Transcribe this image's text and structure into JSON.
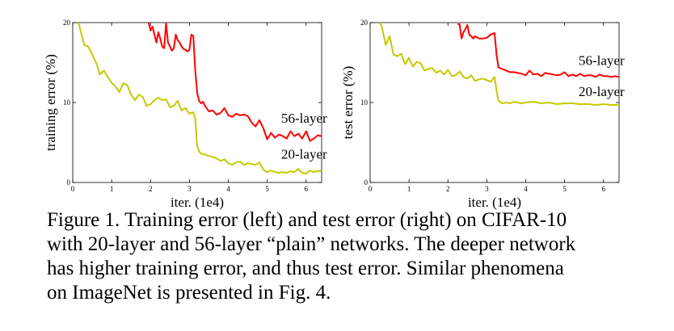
{
  "chart_data": [
    {
      "type": "line",
      "title": "",
      "xlabel": "iter. (1e4)",
      "ylabel": "training error (%)",
      "xlim": [
        0,
        6.4
      ],
      "ylim": [
        0,
        20
      ],
      "xticks": [
        "0",
        "1",
        "2",
        "3",
        "4",
        "5",
        "6"
      ],
      "yticks": [
        "0",
        "10",
        "20"
      ],
      "series": [
        {
          "name": "56-layer",
          "color": "#ff0000",
          "x": [
            1.95,
            2.0,
            2.05,
            2.1,
            2.15,
            2.2,
            2.25,
            2.3,
            2.35,
            2.4,
            2.45,
            2.5,
            2.55,
            2.6,
            2.65,
            2.7,
            2.75,
            2.8,
            2.85,
            2.9,
            2.95,
            3.0,
            3.05,
            3.1,
            3.15,
            3.2,
            3.25,
            3.3,
            3.35,
            3.4,
            3.5,
            3.6,
            3.7,
            3.8,
            3.9,
            4.0,
            4.1,
            4.2,
            4.3,
            4.4,
            4.5,
            4.6,
            4.7,
            4.8,
            4.9,
            5.0,
            5.1,
            5.2,
            5.3,
            5.4,
            5.5,
            5.6,
            5.7,
            5.8,
            5.9,
            6.0,
            6.1,
            6.2,
            6.3,
            6.4
          ],
          "y": [
            20,
            19.0,
            19.5,
            18.5,
            17.5,
            18.8,
            18.0,
            17.0,
            16.8,
            19.9,
            17.5,
            17.0,
            16.5,
            16.8,
            18.5,
            17.8,
            17.5,
            17.0,
            16.7,
            16.6,
            16.4,
            16.6,
            18.5,
            18.3,
            14.0,
            11.2,
            10.2,
            9.9,
            10.1,
            9.6,
            8.9,
            9.0,
            8.5,
            8.7,
            9.3,
            8.4,
            8.2,
            8.6,
            8.4,
            8.5,
            8.3,
            7.5,
            7.0,
            7.8,
            6.8,
            5.4,
            6.2,
            5.6,
            6.0,
            5.8,
            5.5,
            6.4,
            5.8,
            6.1,
            5.5,
            6.4,
            5.2,
            5.5,
            5.9,
            5.8
          ]
        },
        {
          "name": "20-layer",
          "color": "#c8c800",
          "x": [
            0.15,
            0.2,
            0.3,
            0.4,
            0.5,
            0.6,
            0.7,
            0.8,
            0.9,
            1.0,
            1.1,
            1.2,
            1.3,
            1.4,
            1.5,
            1.6,
            1.7,
            1.8,
            1.9,
            2.0,
            2.1,
            2.2,
            2.3,
            2.4,
            2.5,
            2.6,
            2.7,
            2.8,
            2.9,
            3.0,
            3.1,
            3.15,
            3.2,
            3.25,
            3.3,
            3.4,
            3.5,
            3.6,
            3.7,
            3.8,
            3.9,
            4.0,
            4.1,
            4.2,
            4.3,
            4.4,
            4.5,
            4.6,
            4.7,
            4.8,
            4.9,
            5.0,
            5.1,
            5.2,
            5.3,
            5.4,
            5.5,
            5.6,
            5.7,
            5.8,
            5.9,
            6.0,
            6.1,
            6.2,
            6.3,
            6.4
          ],
          "y": [
            20,
            19.0,
            17.2,
            17.0,
            16.0,
            15.0,
            13.5,
            14.0,
            13.2,
            12.5,
            12.0,
            11.3,
            12.4,
            12.2,
            11.0,
            10.3,
            11.0,
            10.7,
            9.6,
            9.8,
            10.3,
            10.6,
            10.3,
            10.4,
            9.4,
            9.6,
            10.2,
            9.0,
            9.3,
            8.6,
            8.8,
            8.0,
            4.5,
            3.9,
            3.6,
            3.5,
            3.3,
            3.2,
            3.0,
            2.7,
            2.9,
            2.4,
            2.2,
            2.5,
            2.6,
            2.2,
            2.4,
            2.3,
            2.2,
            2.5,
            1.6,
            1.3,
            1.5,
            1.3,
            1.2,
            1.3,
            1.2,
            1.4,
            1.3,
            1.7,
            1.2,
            1.1,
            1.5,
            1.3,
            1.4,
            1.5
          ]
        }
      ],
      "annotations": [
        {
          "text": "56-layer",
          "x": 5.95,
          "y": 7.5
        },
        {
          "text": "20-layer",
          "x": 5.95,
          "y": 3.0
        }
      ]
    },
    {
      "type": "line",
      "title": "",
      "xlabel": "iter. (1e4)",
      "ylabel": "test error (%)",
      "xlim": [
        0,
        6.4
      ],
      "ylim": [
        0,
        20
      ],
      "xticks": [
        "0",
        "1",
        "2",
        "3",
        "4",
        "5",
        "6"
      ],
      "yticks": [
        "0",
        "10",
        "20"
      ],
      "series": [
        {
          "name": "56-layer",
          "color": "#ff0000",
          "x": [
            2.25,
            2.3,
            2.35,
            2.4,
            2.45,
            2.5,
            2.55,
            2.6,
            2.65,
            2.7,
            2.8,
            2.9,
            3.0,
            3.1,
            3.2,
            3.25,
            3.3,
            3.4,
            3.5,
            3.6,
            3.7,
            3.8,
            3.9,
            4.0,
            4.1,
            4.2,
            4.3,
            4.4,
            4.5,
            4.6,
            4.7,
            4.8,
            4.9,
            5.0,
            5.1,
            5.2,
            5.3,
            5.4,
            5.5,
            5.6,
            5.7,
            5.8,
            5.9,
            6.0,
            6.1,
            6.2,
            6.3,
            6.4
          ],
          "y": [
            19.8,
            19.8,
            18.0,
            18.8,
            19.2,
            19.7,
            18.5,
            18.3,
            18.0,
            18.3,
            18.0,
            18.0,
            18.1,
            18.5,
            18.7,
            16.0,
            14.4,
            14.2,
            14.0,
            13.8,
            13.8,
            13.7,
            13.6,
            13.4,
            14.0,
            13.5,
            13.6,
            13.3,
            13.7,
            13.6,
            13.5,
            13.4,
            13.5,
            13.8,
            13.3,
            13.5,
            13.3,
            13.6,
            13.3,
            13.4,
            13.4,
            13.2,
            13.5,
            13.3,
            13.3,
            13.2,
            13.3,
            13.2
          ]
        },
        {
          "name": "20-layer",
          "color": "#c8c800",
          "x": [
            0.25,
            0.3,
            0.4,
            0.5,
            0.6,
            0.7,
            0.8,
            0.9,
            1.0,
            1.1,
            1.2,
            1.3,
            1.4,
            1.5,
            1.6,
            1.7,
            1.8,
            1.9,
            2.0,
            2.1,
            2.2,
            2.3,
            2.4,
            2.5,
            2.6,
            2.7,
            2.8,
            2.9,
            3.0,
            3.1,
            3.2,
            3.25,
            3.3,
            3.4,
            3.5,
            3.6,
            3.7,
            3.8,
            3.9,
            4.0,
            4.2,
            4.4,
            4.6,
            4.8,
            5.0,
            5.2,
            5.4,
            5.6,
            5.8,
            6.0,
            6.2,
            6.4
          ],
          "y": [
            20,
            19.5,
            17.2,
            18.3,
            16.0,
            15.8,
            16.1,
            14.8,
            15.6,
            14.5,
            15.1,
            14.9,
            14.0,
            14.2,
            14.3,
            13.7,
            14.0,
            13.5,
            14.1,
            13.3,
            13.4,
            13.9,
            13.2,
            13.0,
            13.4,
            12.7,
            12.9,
            13.0,
            12.8,
            12.6,
            13.2,
            11.5,
            10.2,
            9.9,
            10.0,
            9.9,
            10.1,
            10.0,
            9.9,
            10.0,
            10.1,
            9.9,
            10.0,
            9.8,
            9.9,
            9.9,
            9.8,
            9.8,
            9.7,
            9.8,
            9.7,
            9.7
          ]
        }
      ],
      "annotations": [
        {
          "text": "56-layer",
          "x": 5.95,
          "y": 14.7
        },
        {
          "text": "20-layer",
          "x": 5.95,
          "y": 10.8
        }
      ]
    }
  ],
  "caption": {
    "line1": "Figure 1. Training error (left) and test error (right) on CIFAR-10",
    "line2": "with 20-layer and 56-layer “plain” networks. The deeper network",
    "line3": "has higher training error, and thus test error.  Similar phenomena",
    "line4": "on ImageNet is presented in Fig. 4."
  }
}
